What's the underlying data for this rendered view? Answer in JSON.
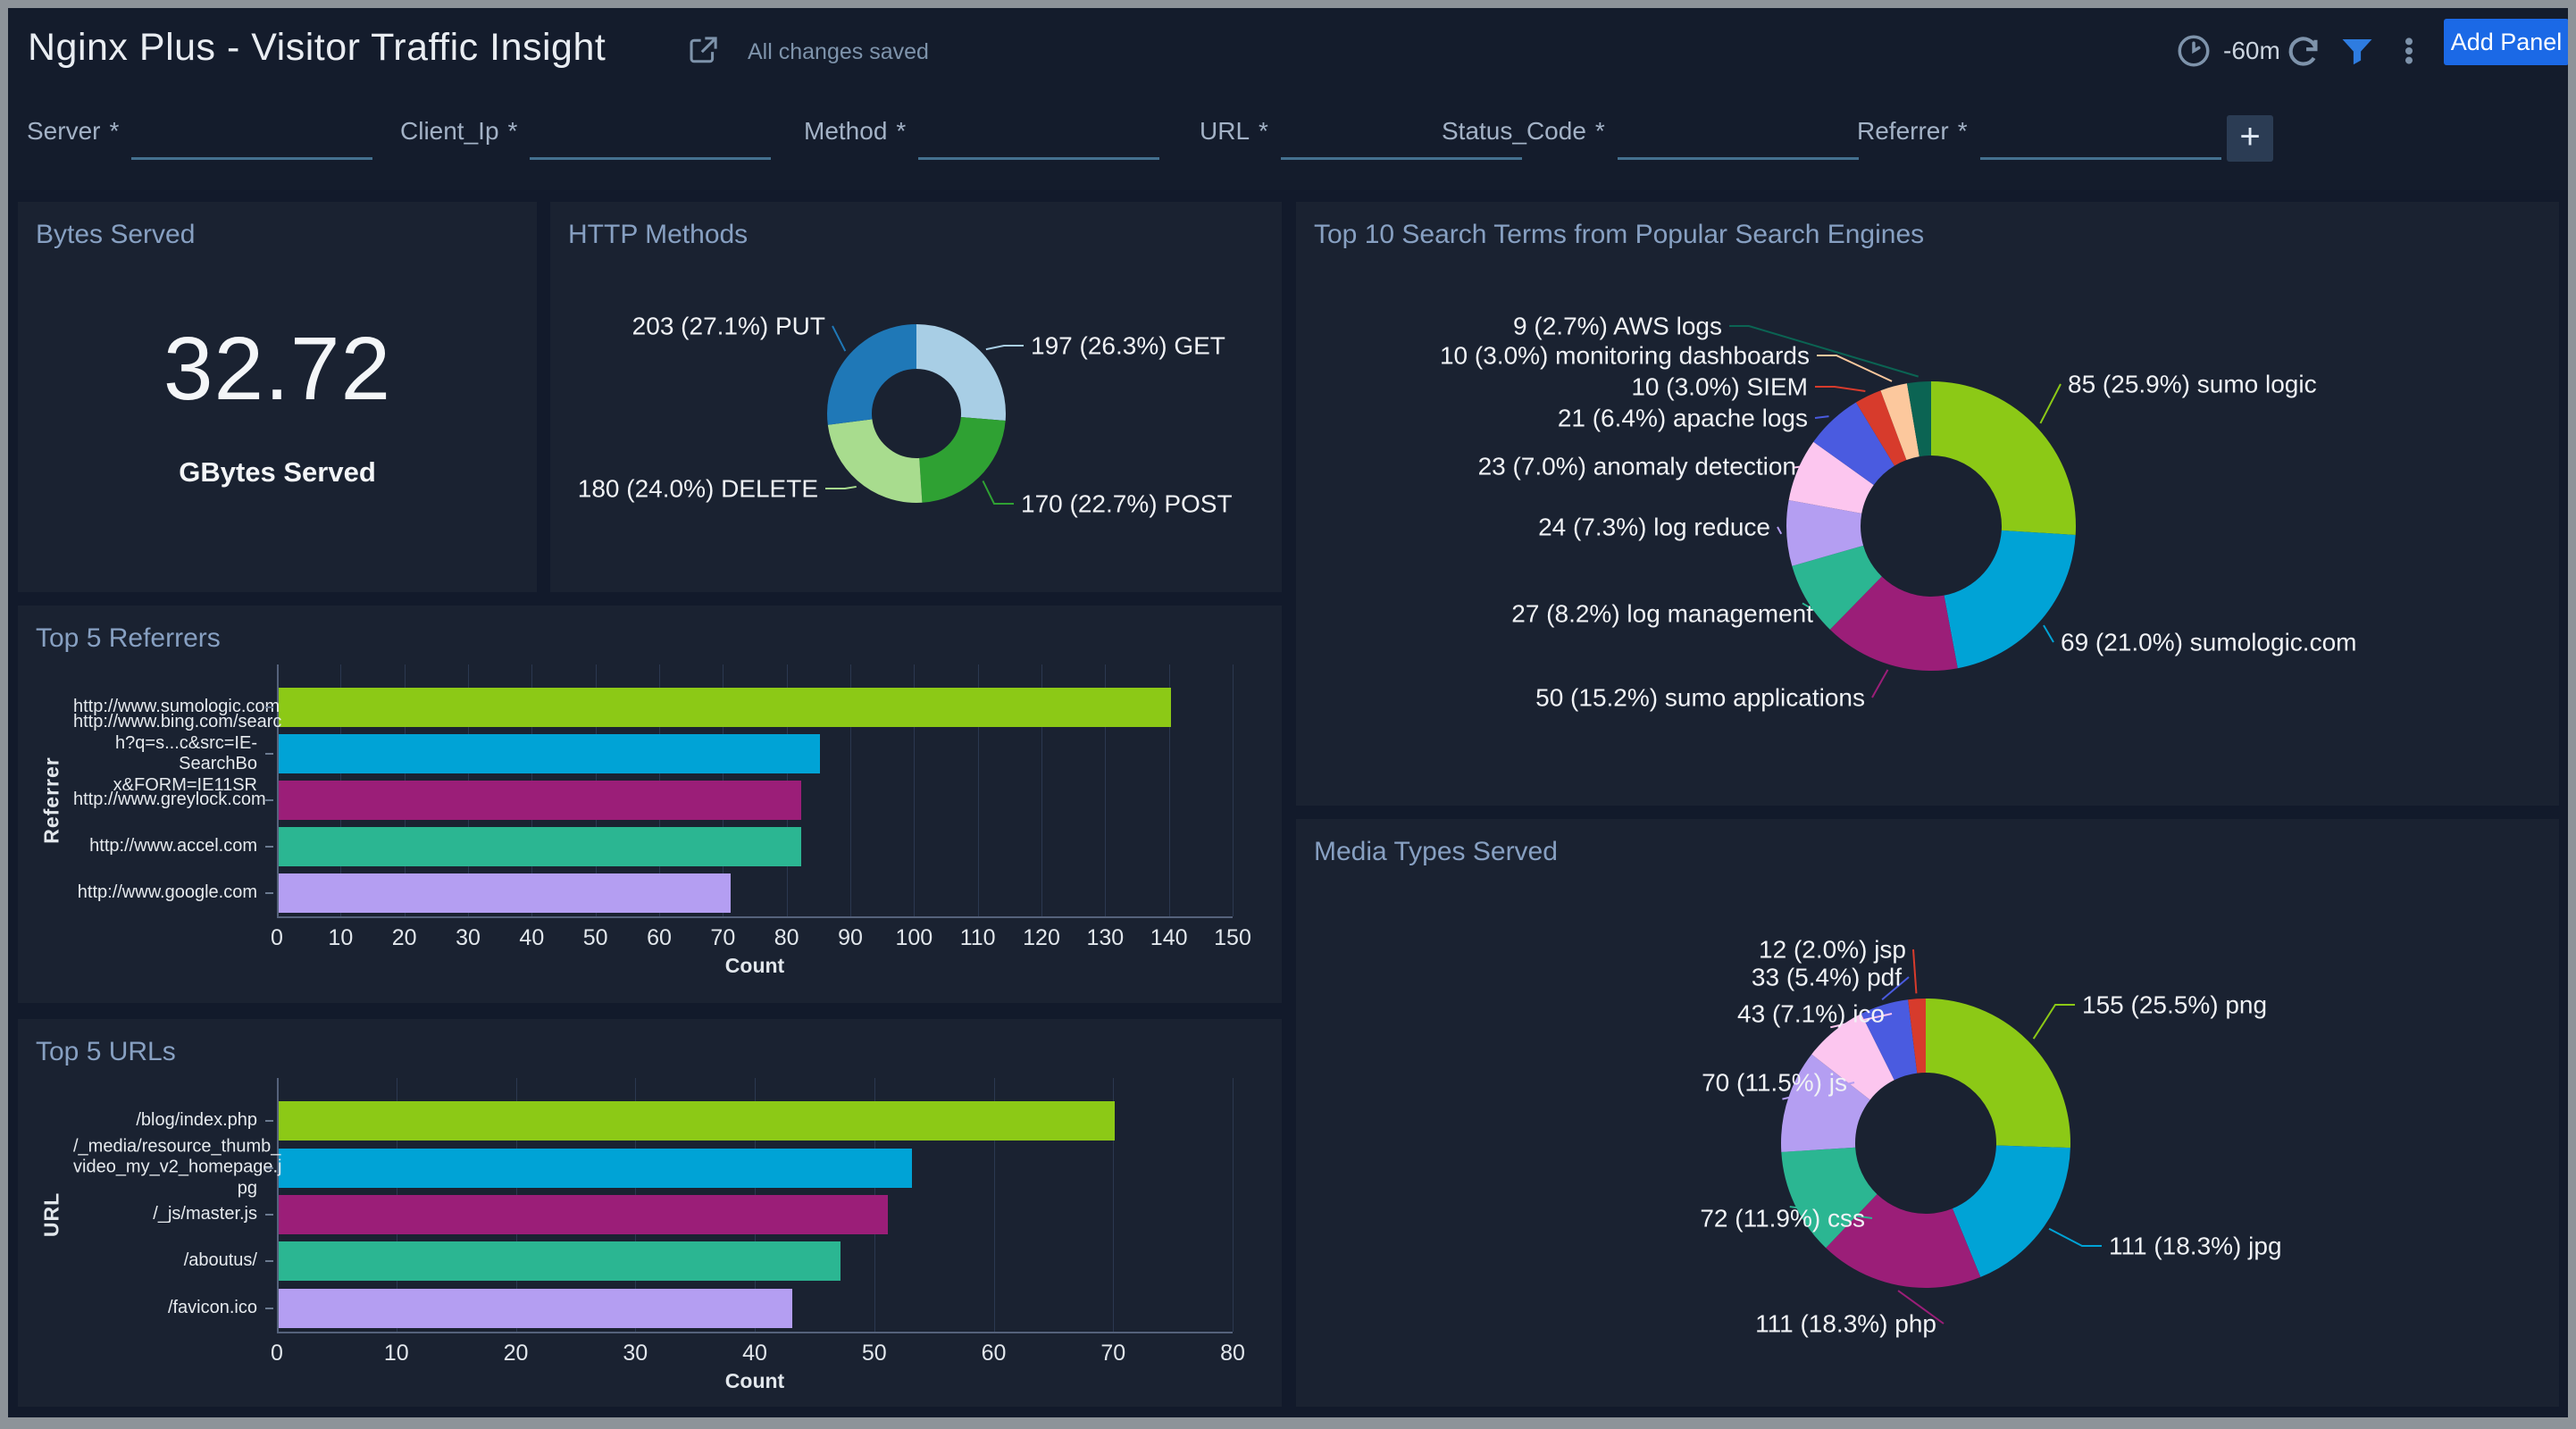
{
  "header": {
    "title": "Nginx Plus - Visitor Traffic Insight",
    "save_status": "All changes saved",
    "time_range": "-60m",
    "add_panel": "Add Panel"
  },
  "filter_bar": {
    "required_marker": "*",
    "add_filter": "+",
    "fields": [
      {
        "label": "Server",
        "value": ""
      },
      {
        "label": "Client_Ip",
        "value": ""
      },
      {
        "label": "Method",
        "value": ""
      },
      {
        "label": "URL",
        "value": ""
      },
      {
        "label": "Status_Code",
        "value": ""
      },
      {
        "label": "Referrer",
        "value": ""
      }
    ]
  },
  "panels": {
    "bytes_served": {
      "title": "Bytes Served",
      "value": "32.72",
      "unit": "GBytes Served"
    },
    "http_methods": {
      "title": "HTTP Methods",
      "chart_data": {
        "type": "pie",
        "subtype": "donut",
        "slices": [
          {
            "label": "GET",
            "value": 197,
            "pct": 26.3,
            "display": "197 (26.3%) GET",
            "color": "#a8cee5"
          },
          {
            "label": "POST",
            "value": 170,
            "pct": 22.7,
            "display": "170 (22.7%) POST",
            "color": "#2fa133"
          },
          {
            "label": "DELETE",
            "value": 180,
            "pct": 24.0,
            "display": "180 (24.0%) DELETE",
            "color": "#a8dc8e"
          },
          {
            "label": "PUT",
            "value": 203,
            "pct": 27.1,
            "display": "203 (27.1%) PUT",
            "color": "#1f78b7"
          }
        ]
      }
    },
    "search_terms": {
      "title": "Top 10 Search Terms from Popular Search Engines",
      "chart_data": {
        "type": "pie",
        "subtype": "donut",
        "slices": [
          {
            "label": "sumo logic",
            "value": 85,
            "pct": 25.9,
            "display": "85 (25.9%) sumo logic",
            "color": "#8cc916"
          },
          {
            "label": "sumologic.com",
            "value": 69,
            "pct": 21.0,
            "display": "69 (21.0%) sumologic.com",
            "color": "#00a3d6"
          },
          {
            "label": "sumo applications",
            "value": 50,
            "pct": 15.2,
            "display": "50 (15.2%) sumo applications",
            "color": "#9b1e78"
          },
          {
            "label": "log management",
            "value": 27,
            "pct": 8.2,
            "display": "27 (8.2%) log management",
            "color": "#2bb692"
          },
          {
            "label": "log reduce",
            "value": 24,
            "pct": 7.3,
            "display": "24 (7.3%) log reduce",
            "color": "#b49ef2"
          },
          {
            "label": "anomaly detection",
            "value": 23,
            "pct": 7.0,
            "display": "23 (7.0%) anomaly detection",
            "color": "#fcc6ef"
          },
          {
            "label": "apache logs",
            "value": 21,
            "pct": 6.4,
            "display": "21 (6.4%) apache logs",
            "color": "#4a5be0"
          },
          {
            "label": "SIEM",
            "value": 10,
            "pct": 3.0,
            "display": "10 (3.0%) SIEM",
            "color": "#d73b2c"
          },
          {
            "label": "monitoring dashboards",
            "value": 10,
            "pct": 3.0,
            "display": "10 (3.0%) monitoring dashboards",
            "color": "#fcc89d"
          },
          {
            "label": "AWS logs",
            "value": 9,
            "pct": 2.7,
            "display": "9 (2.7%) AWS logs",
            "color": "#0b6453"
          }
        ]
      }
    },
    "referrers": {
      "title": "Top 5 Referrers",
      "chart_data": {
        "type": "bar",
        "orientation": "horizontal",
        "xlabel": "Count",
        "ylabel": "Referrer",
        "xlim": [
          0,
          150
        ],
        "xstep": 10,
        "categories": [
          "http://www.sumologic.com",
          "http://www.bing.com/searc\nh?q=s...c&src=IE-SearchBo\nx&FORM=IE11SR",
          "http://www.greylock.com",
          "http://www.accel.com",
          "http://www.google.com"
        ],
        "values": [
          140,
          85,
          82,
          82,
          71
        ],
        "colors": [
          "#8cc916",
          "#00a3d6",
          "#9b1e78",
          "#2bb692",
          "#b49ef2"
        ]
      }
    },
    "urls": {
      "title": "Top 5 URLs",
      "chart_data": {
        "type": "bar",
        "orientation": "horizontal",
        "xlabel": "Count",
        "ylabel": "URL",
        "xlim": [
          0,
          80
        ],
        "xstep": 10,
        "categories": [
          "/blog/index.php",
          "/_media/resource_thumb_\nvideo_my_v2_homepage.j\npg",
          "/_js/master.js",
          "/aboutus/",
          "/favicon.ico"
        ],
        "values": [
          70,
          53,
          51,
          47,
          43
        ],
        "colors": [
          "#8cc916",
          "#00a3d6",
          "#9b1e78",
          "#2bb692",
          "#b49ef2"
        ]
      }
    },
    "media_types": {
      "title": "Media Types Served",
      "chart_data": {
        "type": "pie",
        "subtype": "donut",
        "slices": [
          {
            "label": "png",
            "value": 155,
            "pct": 25.5,
            "display": "155 (25.5%) png",
            "color": "#8cc916"
          },
          {
            "label": "jpg",
            "value": 111,
            "pct": 18.3,
            "display": "111 (18.3%) jpg",
            "color": "#00a3d6"
          },
          {
            "label": "php",
            "value": 111,
            "pct": 18.3,
            "display": "111 (18.3%) php",
            "color": "#9b1e78"
          },
          {
            "label": "css",
            "value": 72,
            "pct": 11.9,
            "display": "72 (11.9%) css",
            "color": "#2bb692"
          },
          {
            "label": "js",
            "value": 70,
            "pct": 11.5,
            "display": "70 (11.5%) js",
            "color": "#b49ef2"
          },
          {
            "label": "ico",
            "value": 43,
            "pct": 7.1,
            "display": "43 (7.1%) ico",
            "color": "#fcc6ef"
          },
          {
            "label": "pdf",
            "value": 33,
            "pct": 5.4,
            "display": "33 (5.4%) pdf",
            "color": "#4a5be0"
          },
          {
            "label": "jsp",
            "value": 12,
            "pct": 2.0,
            "display": "12 (2.0%) jsp",
            "color": "#d73b2c"
          }
        ]
      }
    }
  }
}
